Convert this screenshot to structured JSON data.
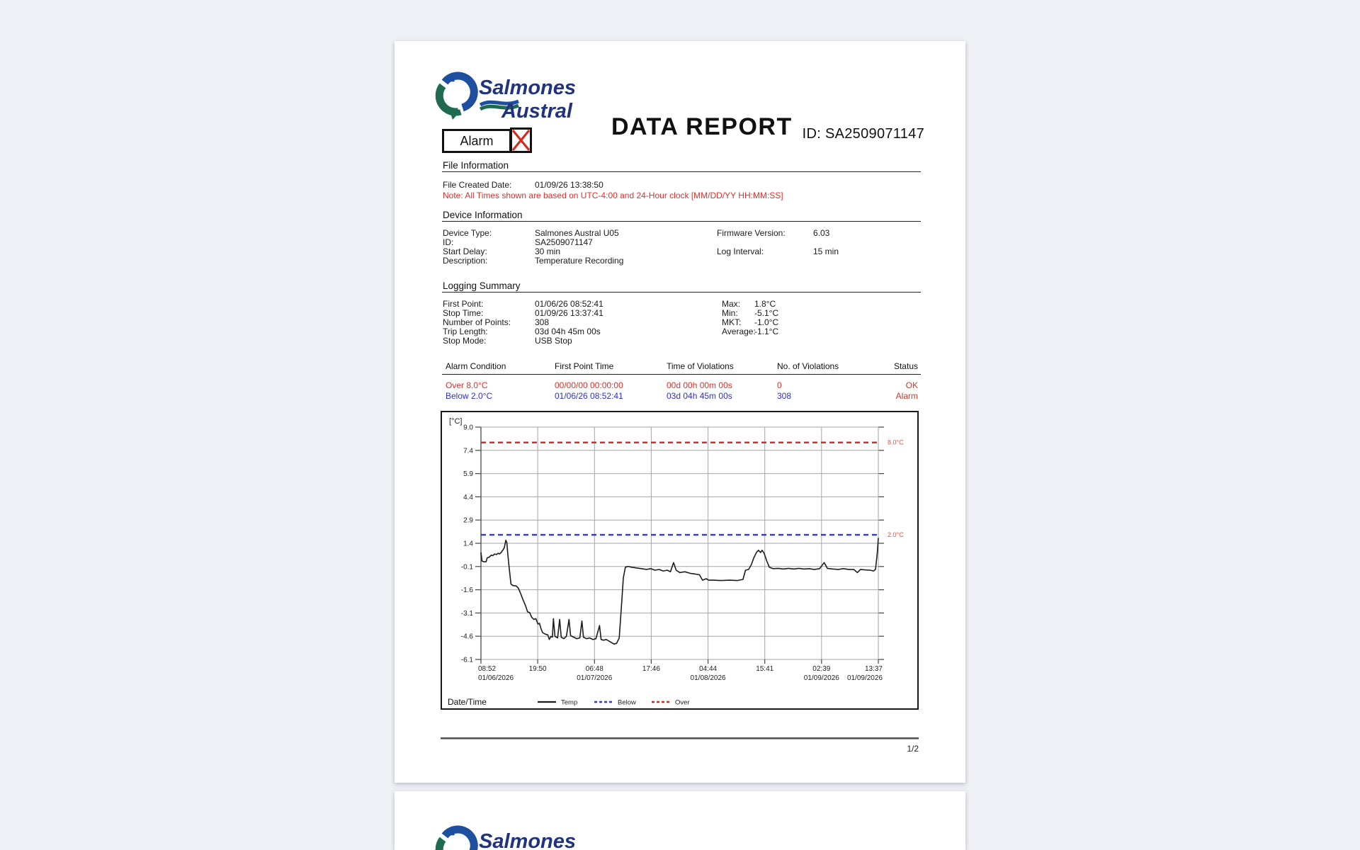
{
  "page": {
    "report_title": "DATA REPORT",
    "alarm_flag_label": "Alarm",
    "id_label": "ID:",
    "id_value": "SA2509071147",
    "page_number": "1/2"
  },
  "logo": {
    "line1": "Salmones",
    "line2": "Austral"
  },
  "colors": {
    "alert_red": "#e0302a",
    "alert_blue": "#2f2fd3",
    "logo_navy": "#21337f",
    "logo_blue": "#1d4f9e",
    "logo_green": "#1e6b52"
  },
  "file_information": {
    "section_title": "File Information",
    "row": {
      "label": "File Created Date:",
      "value": "01/09/26 13:38:50"
    },
    "note": "Note: All Times shown are based on UTC-4:00 and 24-Hour clock [MM/DD/YY HH:MM:SS]"
  },
  "device_information": {
    "section_title": "Device Information",
    "left_rows": [
      {
        "label": "Device Type:",
        "value": "Salmones Austral U05"
      },
      {
        "label": "ID:",
        "value": "SA2509071147"
      },
      {
        "label": "Start Delay:",
        "value": "30 min"
      },
      {
        "label": "Description:",
        "value": "Temperature Recording"
      }
    ],
    "right_rows": [
      {
        "label": "Firmware Version:",
        "value": "6.03"
      },
      {
        "label": "Log Interval:",
        "value": "15 min"
      }
    ]
  },
  "logging_summary": {
    "section_title": "Logging Summary",
    "left_rows": [
      {
        "label": "First Point:",
        "value": "01/06/26 08:52:41"
      },
      {
        "label": "Stop Time:",
        "value": "01/09/26 13:37:41"
      },
      {
        "label": "Number of Points:",
        "value": "308"
      },
      {
        "label": "Trip Length:",
        "value": "03d 04h 45m 00s"
      },
      {
        "label": "Stop Mode:",
        "value": "USB Stop"
      }
    ],
    "right_rows": [
      {
        "label": "Max:",
        "value": "1.8°C"
      },
      {
        "label": "Min:",
        "value": "-5.1°C"
      },
      {
        "label": "MKT:",
        "value": "-1.0°C"
      },
      {
        "label": "Average:",
        "value": "-1.1°C"
      }
    ]
  },
  "alarm_table": {
    "headers": [
      "Alarm Condition",
      "First Point Time",
      "Time of Violations",
      "No. of Violations",
      "Status"
    ],
    "rows": [
      {
        "cells": [
          "Over 8.0°C",
          "00/00/00 00:00:00",
          "00d 00h 00m 00s",
          "0",
          "OK"
        ],
        "color": "#e0302a"
      },
      {
        "cells": [
          "Below 2.0°C",
          "01/06/26 08:52:41",
          "03d 04h 45m 00s",
          "308",
          "Alarm"
        ],
        "color": "#2f2fd3",
        "status_color": "#e0302a"
      }
    ]
  },
  "chart_data": {
    "type": "line",
    "y_unit": "[°C]",
    "x_label": "Date/Time",
    "y_max": 9.0,
    "y_min": -6.1,
    "y_tick_labels": [
      "9.0",
      "7.4",
      "5.9",
      "4.4",
      "2.9",
      "1.4",
      "-0.1",
      "-1.6",
      "-3.1",
      "-4.6",
      "-6.1"
    ],
    "x_min_hours": 0,
    "x_max_hours": 76.75,
    "x_ticks": [
      {
        "hours": 0,
        "time": "08:52",
        "date": "01/06/2026"
      },
      {
        "hours": 10.96,
        "time": "19:50",
        "date": ""
      },
      {
        "hours": 21.93,
        "time": "06:48",
        "date": "01/07/2026"
      },
      {
        "hours": 32.89,
        "time": "17:46",
        "date": ""
      },
      {
        "hours": 43.86,
        "time": "04:44",
        "date": "01/08/2026"
      },
      {
        "hours": 54.82,
        "time": "15:41",
        "date": ""
      },
      {
        "hours": 65.78,
        "time": "02:39",
        "date": "01/09/2026"
      },
      {
        "hours": 76.75,
        "time": "13:37",
        "date": "01/09/2026"
      }
    ],
    "thresholds": [
      {
        "value": 8.0,
        "label": "8.0°C",
        "color": "#cf2820",
        "label_color": "#d9534f"
      },
      {
        "value": 2.0,
        "label": "2.0°C",
        "color": "#3538cc",
        "label_color": "#d9534f"
      }
    ],
    "legend": [
      {
        "label": "Temp",
        "style": "solid",
        "color": "#1d1d1d"
      },
      {
        "label": "Below",
        "style": "dashed",
        "color": "#3538cc"
      },
      {
        "label": "Over",
        "style": "dashed",
        "color": "#cf2820"
      }
    ],
    "series": [
      {
        "name": "Temp",
        "color": "#1d1d1d",
        "points": [
          [
            0,
            0.85
          ],
          [
            0.2,
            0.3
          ],
          [
            0.5,
            0.25
          ],
          [
            1.0,
            0.25
          ],
          [
            1.2,
            0.5
          ],
          [
            1.6,
            0.55
          ],
          [
            2.0,
            0.68
          ],
          [
            2.3,
            0.65
          ],
          [
            2.6,
            0.75
          ],
          [
            3.0,
            0.72
          ],
          [
            3.3,
            0.8
          ],
          [
            3.6,
            0.76
          ],
          [
            3.9,
            0.85
          ],
          [
            4.2,
            1.0
          ],
          [
            4.5,
            1.15
          ],
          [
            4.8,
            1.65
          ],
          [
            5.0,
            1.5
          ],
          [
            5.2,
            0.7
          ],
          [
            5.5,
            -0.3
          ],
          [
            5.8,
            -1.2
          ],
          [
            6.2,
            -1.3
          ],
          [
            6.8,
            -1.32
          ],
          [
            7.2,
            -1.45
          ],
          [
            7.7,
            -1.85
          ],
          [
            8.1,
            -2.2
          ],
          [
            8.6,
            -2.6
          ],
          [
            9.0,
            -3.0
          ],
          [
            9.4,
            -3.05
          ],
          [
            9.8,
            -3.35
          ],
          [
            10.2,
            -3.5
          ],
          [
            10.6,
            -3.45
          ],
          [
            11.0,
            -3.8
          ],
          [
            11.3,
            -3.75
          ],
          [
            11.6,
            -4.1
          ],
          [
            11.9,
            -4.35
          ],
          [
            12.4,
            -4.45
          ],
          [
            12.9,
            -4.5
          ],
          [
            13.2,
            -4.8
          ],
          [
            13.5,
            -4.6
          ],
          [
            13.8,
            -4.65
          ],
          [
            14.0,
            -3.45
          ],
          [
            14.3,
            -4.6
          ],
          [
            14.8,
            -4.7
          ],
          [
            15.2,
            -3.5
          ],
          [
            15.5,
            -4.65
          ],
          [
            16.0,
            -4.75
          ],
          [
            16.5,
            -4.6
          ],
          [
            17.0,
            -3.5
          ],
          [
            17.3,
            -4.55
          ],
          [
            17.9,
            -4.65
          ],
          [
            18.5,
            -4.75
          ],
          [
            19.1,
            -4.7
          ],
          [
            19.5,
            -3.6
          ],
          [
            19.8,
            -4.65
          ],
          [
            20.4,
            -4.75
          ],
          [
            21.0,
            -4.7
          ],
          [
            21.6,
            -4.8
          ],
          [
            22.2,
            -4.75
          ],
          [
            22.9,
            -3.9
          ],
          [
            23.2,
            -4.8
          ],
          [
            23.7,
            -4.85
          ],
          [
            24.2,
            -4.8
          ],
          [
            24.7,
            -4.9
          ],
          [
            25.2,
            -5.0
          ],
          [
            25.7,
            -5.1
          ],
          [
            26.2,
            -5.05
          ],
          [
            26.7,
            -4.7
          ],
          [
            27.1,
            -2.8
          ],
          [
            27.5,
            -0.8
          ],
          [
            27.9,
            -0.1
          ],
          [
            28.4,
            -0.05
          ],
          [
            29.0,
            -0.1
          ],
          [
            30.0,
            -0.15
          ],
          [
            31.0,
            -0.2
          ],
          [
            32.0,
            -0.25
          ],
          [
            32.8,
            -0.2
          ],
          [
            33.6,
            -0.3
          ],
          [
            34.4,
            -0.25
          ],
          [
            35.2,
            -0.35
          ],
          [
            36.0,
            -0.3
          ],
          [
            36.6,
            -0.4
          ],
          [
            37.2,
            0.2
          ],
          [
            37.7,
            -0.3
          ],
          [
            38.4,
            -0.45
          ],
          [
            39.4,
            -0.4
          ],
          [
            40.4,
            -0.5
          ],
          [
            41.4,
            -0.55
          ],
          [
            42.2,
            -0.6
          ],
          [
            42.8,
            -0.95
          ],
          [
            43.5,
            -0.85
          ],
          [
            44.0,
            -0.95
          ],
          [
            45.0,
            -0.95
          ],
          [
            46.5,
            -0.97
          ],
          [
            48.0,
            -0.95
          ],
          [
            49.5,
            -0.97
          ],
          [
            50.6,
            -0.9
          ],
          [
            51.1,
            -0.3
          ],
          [
            51.7,
            -0.25
          ],
          [
            52.2,
            0.05
          ],
          [
            52.7,
            0.5
          ],
          [
            53.2,
            0.85
          ],
          [
            53.6,
            1.0
          ],
          [
            54.0,
            0.85
          ],
          [
            54.3,
            1.0
          ],
          [
            54.7,
            0.8
          ],
          [
            55.2,
            0.3
          ],
          [
            55.7,
            -0.1
          ],
          [
            56.4,
            -0.2
          ],
          [
            57.4,
            -0.18
          ],
          [
            58.4,
            -0.22
          ],
          [
            59.4,
            -0.18
          ],
          [
            60.4,
            -0.22
          ],
          [
            61.4,
            -0.18
          ],
          [
            62.4,
            -0.22
          ],
          [
            63.4,
            -0.2
          ],
          [
            64.4,
            -0.25
          ],
          [
            65.4,
            -0.2
          ],
          [
            66.3,
            0.2
          ],
          [
            66.9,
            -0.18
          ],
          [
            68.0,
            -0.22
          ],
          [
            69.0,
            -0.25
          ],
          [
            70.0,
            -0.2
          ],
          [
            71.0,
            -0.25
          ],
          [
            72.0,
            -0.25
          ],
          [
            72.7,
            -0.45
          ],
          [
            73.3,
            -0.25
          ],
          [
            74.2,
            -0.28
          ],
          [
            75.2,
            -0.3
          ],
          [
            75.8,
            -0.35
          ],
          [
            76.2,
            -0.25
          ],
          [
            76.55,
            0.8
          ],
          [
            76.75,
            1.8
          ]
        ]
      }
    ]
  }
}
